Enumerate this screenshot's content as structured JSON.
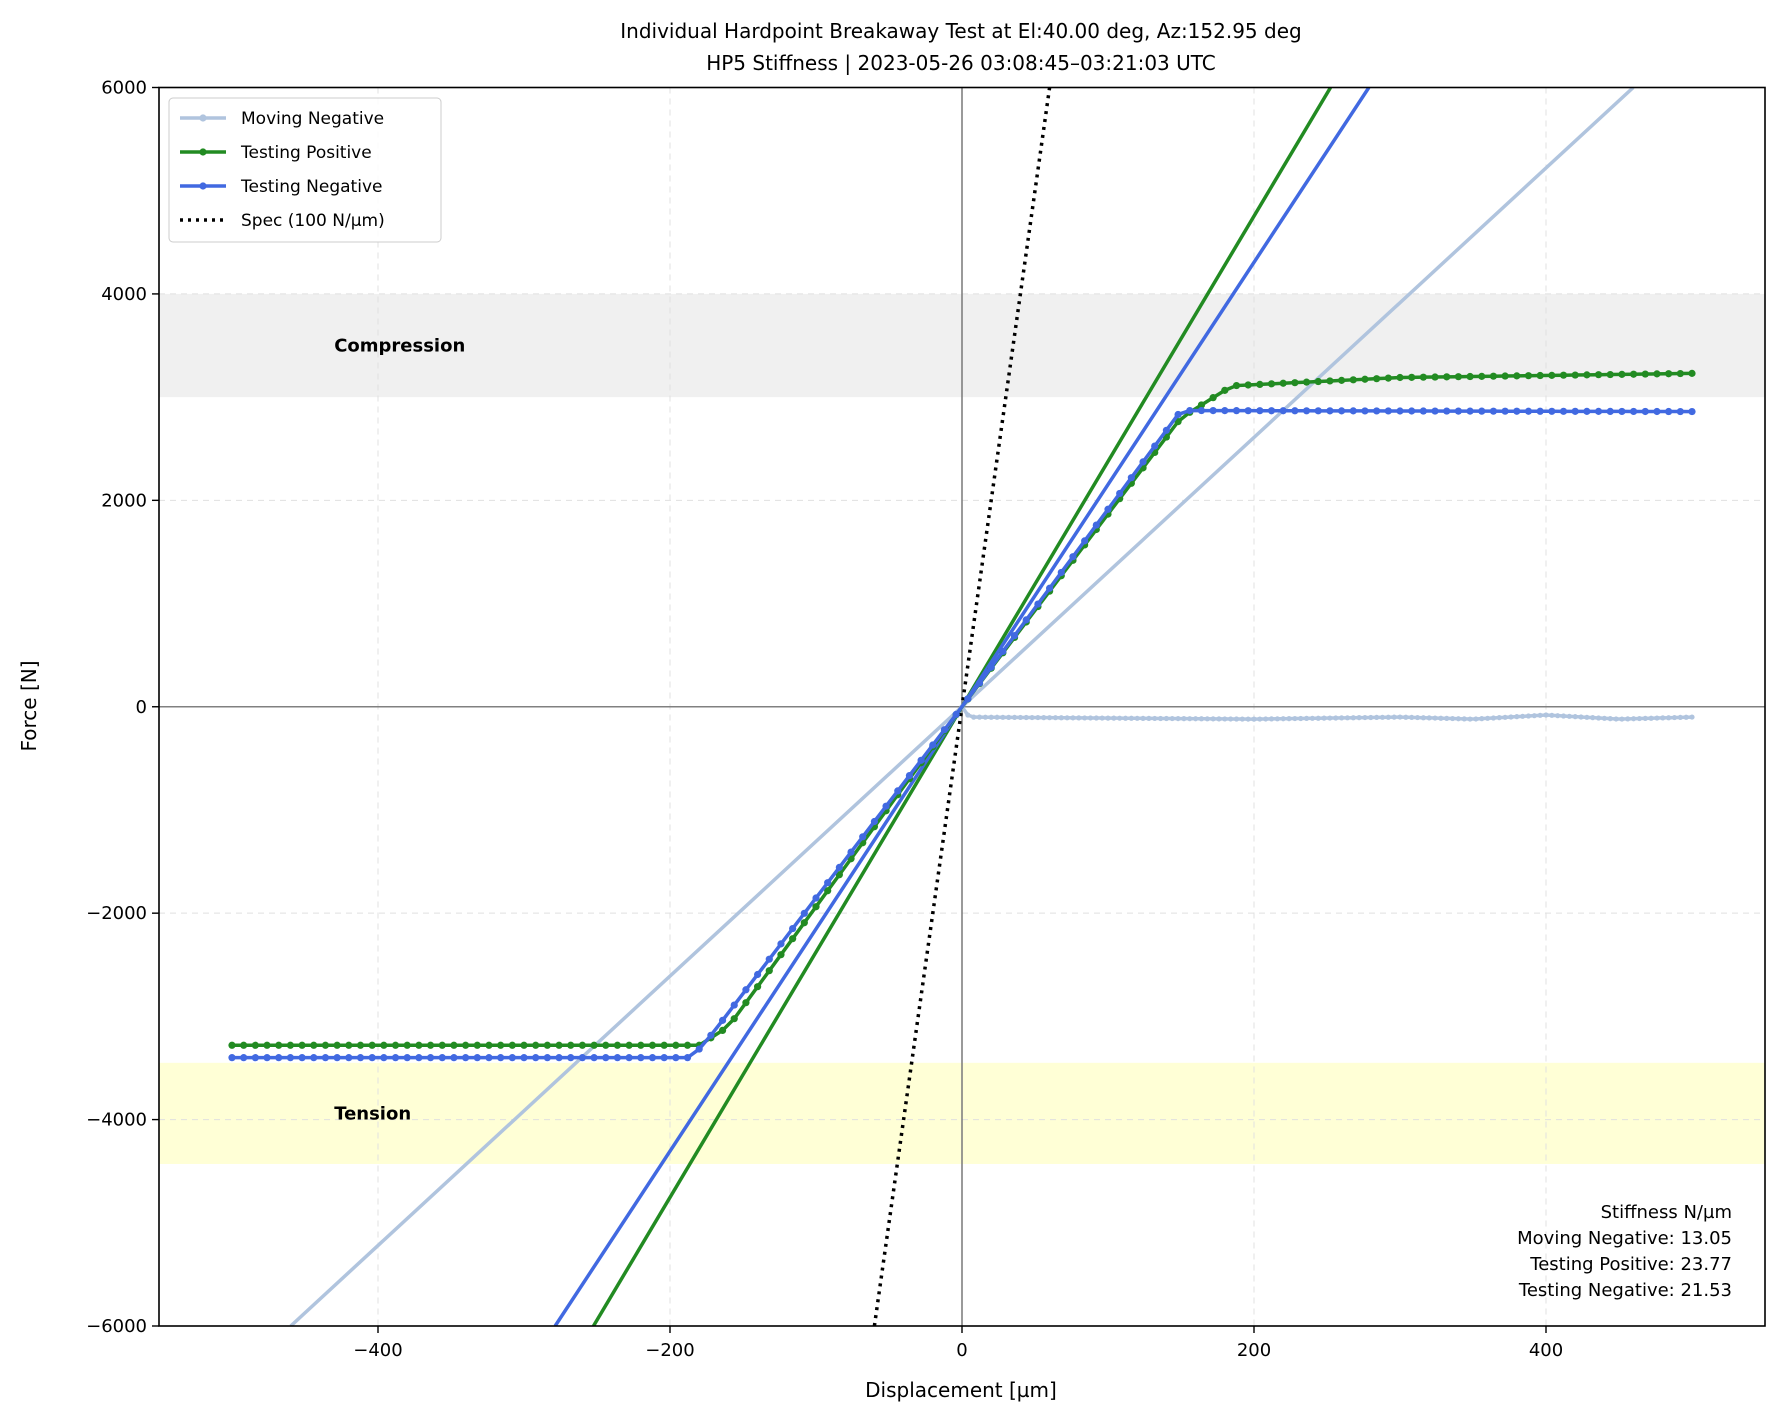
{
  "chart_data": {
    "type": "line",
    "title": "Individual Hardpoint Breakaway Test at El:40.00 deg, Az:152.95 deg",
    "subtitle": "HP5 Stiffness | 2023-05-26 03:08:45–03:21:03 UTC",
    "xlabel": "Displacement [µm]",
    "ylabel": "Force [N]",
    "xlim": [
      -550,
      550
    ],
    "ylim": [
      -6000,
      6000
    ],
    "xticks": [
      -400,
      -200,
      0,
      200,
      400
    ],
    "yticks": [
      -6000,
      -4000,
      -2000,
      0,
      2000,
      4000,
      6000
    ],
    "xtick_labels": [
      "−400",
      "−200",
      "0",
      "200",
      "400"
    ],
    "ytick_labels": [
      "−6000",
      "−4000",
      "−2000",
      "0",
      "2000",
      "4000",
      "6000"
    ],
    "grid": true,
    "legend_position": "top-left",
    "bands": [
      {
        "label": "Compression",
        "y0": 3000,
        "y1": 4000,
        "color": "#f0f0f0"
      },
      {
        "label": "Tension",
        "y0": -4430,
        "y1": -3450,
        "color": "#ffffd6"
      }
    ],
    "series": [
      {
        "name": "Moving Negative",
        "color": "#b0c4de",
        "step": 4,
        "points": [
          [
            0,
            0
          ],
          [
            5,
            -100
          ],
          [
            100,
            -110
          ],
          [
            200,
            -120
          ],
          [
            300,
            -100
          ],
          [
            350,
            -120
          ],
          [
            400,
            -80
          ],
          [
            450,
            -120
          ],
          [
            500,
            -100
          ]
        ]
      },
      {
        "name": "Testing Positive",
        "color": "#228b22",
        "step": 8,
        "points": [
          [
            -500,
            -3280
          ],
          [
            -180,
            -3280
          ],
          [
            -160,
            -3100
          ],
          [
            0,
            0
          ],
          [
            150,
            2800
          ],
          [
            185,
            3110
          ],
          [
            300,
            3190
          ],
          [
            500,
            3230
          ]
        ]
      },
      {
        "name": "Testing Negative",
        "color": "#4169e1",
        "step": 8,
        "points": [
          [
            -500,
            -3400
          ],
          [
            -185,
            -3400
          ],
          [
            -170,
            -3150
          ],
          [
            0,
            0
          ],
          [
            150,
            2870
          ],
          [
            500,
            2860
          ]
        ]
      }
    ],
    "fits": [
      {
        "name": "Moving Negative",
        "slope": 13.05,
        "color": "#b0c4de"
      },
      {
        "name": "Testing Positive",
        "slope": 23.77,
        "color": "#228b22"
      },
      {
        "name": "Testing Negative",
        "slope": 21.53,
        "color": "#4169e1"
      }
    ],
    "spec": {
      "name": "Spec (100 N/µm)",
      "slope": 100,
      "color": "#000000"
    },
    "annotation": [
      "Stiffness N/µm",
      "Moving Negative:  13.05",
      "Testing Positive: 23.77",
      "Testing Negative: 21.53"
    ]
  }
}
